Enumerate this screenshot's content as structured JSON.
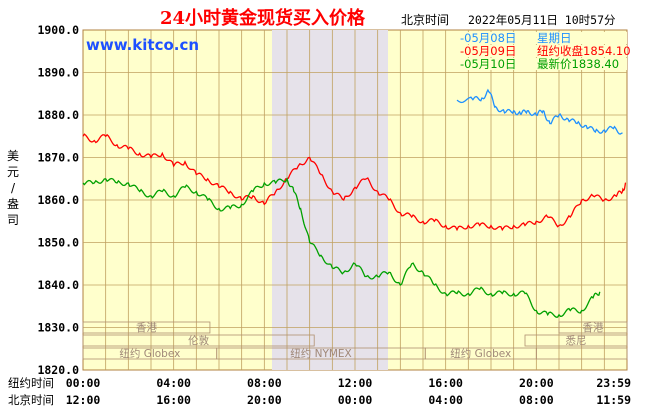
{
  "header": {
    "title": "24小时黄金现货买入价格",
    "beijing_time_label": "北京时间",
    "datetime": "2022年05月11日 10时57分",
    "watermark": "www.kitco.cn"
  },
  "legend": [
    {
      "date": "-05月08日",
      "desc": "星期日",
      "color": "#1e90ff"
    },
    {
      "date": "-05月09日",
      "desc": "纽约收盘1854.10",
      "color": "#ff0000"
    },
    {
      "date": "-05月10日",
      "desc": "最新价1838.40",
      "color": "#00a000"
    }
  ],
  "axis": {
    "y_label": "美元/盎司",
    "row1_label": "纽约时间",
    "row2_label": "北京时间",
    "ny_ticks": [
      "00:00",
      "04:00",
      "08:00",
      "12:00",
      "16:00",
      "20:00",
      "23:59"
    ],
    "bj_ticks": [
      "12:00",
      "16:00",
      "20:00",
      "00:00",
      "04:00",
      "08:00",
      "11:59"
    ]
  },
  "markets": {
    "hongkong": "香港",
    "london": "伦敦",
    "globex": "纽约 Globex",
    "nymex": "纽约 NYMEX",
    "sydney": "悉尼"
  },
  "colors": {
    "background": "#ffffcc",
    "grid": "#c0a060",
    "title": "#ff0000",
    "watermark": "#1e50ff",
    "shade": "#e6e2ea"
  },
  "chart_data": {
    "type": "line",
    "title": "24小时黄金现货买入价格",
    "ylabel": "美元/盎司",
    "xlabel": "",
    "ylim": [
      1820,
      1900
    ],
    "yticks": [
      1820,
      1830,
      1840,
      1850,
      1860,
      1870,
      1880,
      1890,
      1900
    ],
    "x_unit": "hours (New York time)",
    "xlim": [
      0,
      24
    ],
    "grid": true,
    "series": [
      {
        "name": "-05月08日 星期日",
        "color": "#1e90ff",
        "x": [
          16.5,
          17.2,
          17.6,
          17.9,
          18.2,
          18.6,
          19.0,
          19.3,
          19.6,
          20.0,
          20.3,
          20.6,
          21.0,
          21.4,
          21.8,
          22.2,
          22.6,
          23.0,
          23.4,
          23.8
        ],
        "y": [
          1883.5,
          1883.6,
          1884.0,
          1885.5,
          1882.0,
          1880.5,
          1881.0,
          1880.2,
          1881.0,
          1880.0,
          1881.0,
          1878.0,
          1880.0,
          1879.0,
          1878.0,
          1877.5,
          1876.0,
          1876.5,
          1876.8,
          1875.8
        ]
      },
      {
        "name": "-05月09日 纽约收盘1854.10",
        "color": "#ff0000",
        "x": [
          0,
          0.5,
          1.0,
          1.5,
          2.0,
          2.5,
          3.0,
          3.5,
          4.0,
          4.5,
          5.0,
          5.5,
          6.0,
          6.5,
          7.0,
          7.5,
          8.0,
          8.5,
          9.0,
          9.5,
          10.0,
          10.5,
          11.0,
          11.5,
          12.0,
          12.5,
          13.0,
          13.5,
          14.0,
          14.5,
          15.0,
          15.5,
          16.0,
          16.5,
          17.0,
          17.5,
          18.0,
          18.5,
          19.0,
          19.5,
          20.0,
          20.5,
          21.0,
          21.5,
          22.0,
          22.5,
          23.0,
          23.5,
          23.8,
          23.95
        ],
        "y": [
          1875,
          1874,
          1875,
          1873,
          1872,
          1871,
          1870,
          1871,
          1868,
          1869,
          1866,
          1865,
          1863,
          1862,
          1860,
          1861,
          1859,
          1862,
          1865,
          1868,
          1870,
          1866,
          1862,
          1860,
          1863,
          1865,
          1862,
          1860,
          1857,
          1856,
          1855,
          1855,
          1854,
          1853,
          1854,
          1854,
          1854,
          1853,
          1854,
          1854,
          1855,
          1856,
          1854,
          1856,
          1860,
          1861,
          1860,
          1861,
          1862,
          1864
        ]
      },
      {
        "name": "-05月10日 最新价1838.40",
        "color": "#00a000",
        "x": [
          0,
          0.5,
          1.0,
          1.5,
          2.0,
          2.5,
          3.0,
          3.5,
          4.0,
          4.5,
          5.0,
          5.5,
          6.0,
          6.5,
          7.0,
          7.5,
          8.0,
          8.5,
          9.0,
          9.3,
          9.6,
          10.0,
          10.5,
          11.0,
          11.5,
          12.0,
          12.5,
          13.0,
          13.5,
          14.0,
          14.5,
          15.0,
          15.5,
          16.0,
          16.5,
          17.0,
          17.5,
          18.0,
          18.5,
          19.0,
          19.5,
          20.0,
          20.5,
          21.0,
          21.5,
          22.0,
          22.5,
          22.8
        ],
        "y": [
          1864,
          1864,
          1865,
          1864,
          1864,
          1862,
          1861,
          1862,
          1861,
          1863,
          1862,
          1860,
          1858,
          1858,
          1859,
          1862,
          1864,
          1864,
          1865,
          1862,
          1858,
          1850,
          1847,
          1844,
          1843,
          1845,
          1842,
          1842,
          1843,
          1840,
          1845,
          1843,
          1840,
          1838,
          1838,
          1838,
          1839,
          1838,
          1838,
          1838,
          1838,
          1834,
          1833,
          1833,
          1834,
          1834,
          1837,
          1838.4
        ]
      }
    ]
  }
}
